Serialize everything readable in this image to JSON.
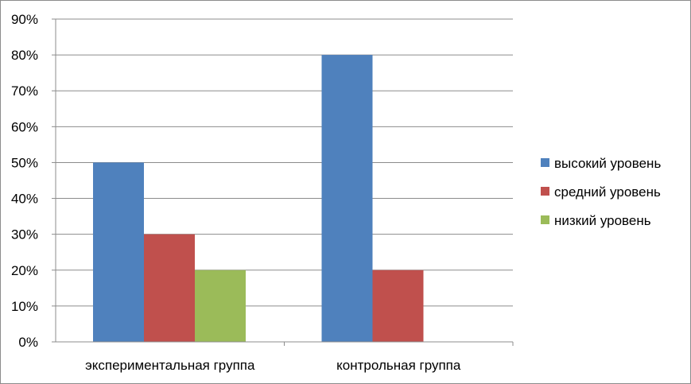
{
  "chart_data": {
    "type": "bar",
    "categories": [
      "экспериментальная группа",
      "контрольная группа"
    ],
    "series": [
      {
        "name": "высокий уровень",
        "values": [
          50,
          80
        ],
        "color": "#4F81BD"
      },
      {
        "name": "средний уровень",
        "values": [
          30,
          20
        ],
        "color": "#C0504D"
      },
      {
        "name": "низкий уровень",
        "values": [
          20,
          0
        ],
        "color": "#9BBB59"
      }
    ],
    "ylim": [
      0,
      90
    ],
    "y_ticks": [
      0,
      10,
      20,
      30,
      40,
      50,
      60,
      70,
      80,
      90
    ],
    "y_tick_labels": [
      "0%",
      "10%",
      "20%",
      "30%",
      "40%",
      "50%",
      "60%",
      "70%",
      "80%",
      "90%"
    ],
    "y_unit": "%",
    "grid": true,
    "legend_position": "right",
    "title": "",
    "xlabel": "",
    "ylabel": ""
  }
}
